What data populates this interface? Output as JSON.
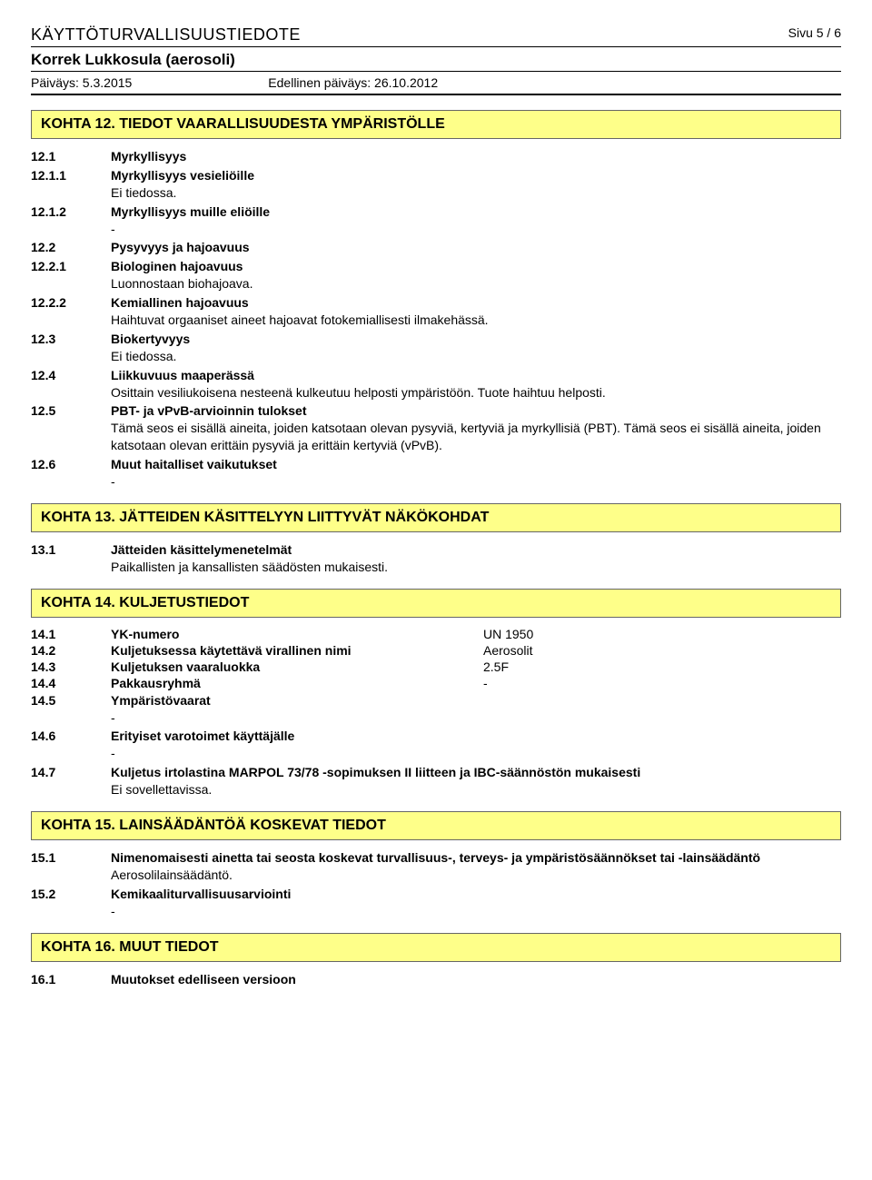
{
  "header": {
    "title": "KÄYTTÖTURVALLISUUSTIEDOTE",
    "page": "Sivu  5 / 6",
    "product": "Korrek Lukkosula (aerosoli)",
    "date_label": "Päiväys: 5.3.2015",
    "prev_date_label": "Edellinen päiväys: 26.10.2012"
  },
  "s12": {
    "heading": "KOHTA 12. TIEDOT VAARALLISUUDESTA YMPÄRISTÖLLE",
    "r121_num": "12.1",
    "r121_label": "Myrkyllisyys",
    "r1211_num": "12.1.1",
    "r1211_label": "Myrkyllisyys vesieliöille",
    "r1211_text": "Ei tiedossa.",
    "r1212_num": "12.1.2",
    "r1212_label": "Myrkyllisyys muille eliöille",
    "r1212_text": "-",
    "r122_num": "12.2",
    "r122_label": "Pysyvyys ja hajoavuus",
    "r1221_num": "12.2.1",
    "r1221_label": "Biologinen hajoavuus",
    "r1221_text": "Luonnostaan biohajoava.",
    "r1222_num": "12.2.2",
    "r1222_label": "Kemiallinen hajoavuus",
    "r1222_text": "Haihtuvat orgaaniset aineet hajoavat fotokemiallisesti ilmakehässä.",
    "r123_num": "12.3",
    "r123_label": "Biokertyvyys",
    "r123_text": "Ei tiedossa.",
    "r124_num": "12.4",
    "r124_label": "Liikkuvuus maaperässä",
    "r124_text": "Osittain  vesiliukoisena nesteenä kulkeutuu helposti ympäristöön.  Tuote haihtuu helposti.",
    "r125_num": "12.5",
    "r125_label": "PBT- ja vPvB-arvioinnin tulokset",
    "r125_text": "Tämä seos ei sisällä aineita, joiden katsotaan olevan pysyviä, kertyviä ja myrkyllisiä (PBT). Tämä seos ei sisällä aineita, joiden katsotaan olevan erittäin pysyviä ja erittäin kertyviä (vPvB).",
    "r126_num": "12.6",
    "r126_label": "Muut haitalliset vaikutukset",
    "r126_text": "-"
  },
  "s13": {
    "heading": "KOHTA 13. JÄTTEIDEN KÄSITTELYYN LIITTYVÄT NÄKÖKOHDAT",
    "r131_num": "13.1",
    "r131_label": "Jätteiden käsittelymenetelmät",
    "r131_text": "Paikallisten ja kansallisten säädösten mukaisesti."
  },
  "s14": {
    "heading": "KOHTA 14. KULJETUSTIEDOT",
    "r141_num": "14.1",
    "r141_label": "YK-numero",
    "r141_val": "UN 1950",
    "r142_num": "14.2",
    "r142_label": "Kuljetuksessa käytettävä virallinen nimi",
    "r142_val": "Aerosolit",
    "r143_num": "14.3",
    "r143_label": "Kuljetuksen vaaraluokka",
    "r143_val": "2.5F",
    "r144_num": "14.4",
    "r144_label": "Pakkausryhmä",
    "r144_val": "-",
    "r145_num": "14.5",
    "r145_label": "Ympäristövaarat",
    "r145_text": "-",
    "r146_num": "14.6",
    "r146_label": "Erityiset varotoimet käyttäjälle",
    "r146_text": "-",
    "r147_num": "14.7",
    "r147_label": "Kuljetus irtolastina MARPOL 73/78 -sopimuksen II liitteen ja IBC-säännöstön mukaisesti",
    "r147_text": "Ei sovellettavissa."
  },
  "s15": {
    "heading": "KOHTA 15. LAINSÄÄDÄNTÖÄ KOSKEVAT TIEDOT",
    "r151_num": "15.1",
    "r151_label": "Nimenomaisesti ainetta tai seosta koskevat turvallisuus-, terveys- ja ympäristösäännökset tai -lainsäädäntö",
    "r151_text": "Aerosolilainsäädäntö.",
    "r152_num": "15.2",
    "r152_label": "Kemikaaliturvallisuusarviointi",
    "r152_text": "-"
  },
  "s16": {
    "heading": "KOHTA 16. MUUT TIEDOT",
    "r161_num": "16.1",
    "r161_label": "Muutokset edelliseen versioon"
  }
}
